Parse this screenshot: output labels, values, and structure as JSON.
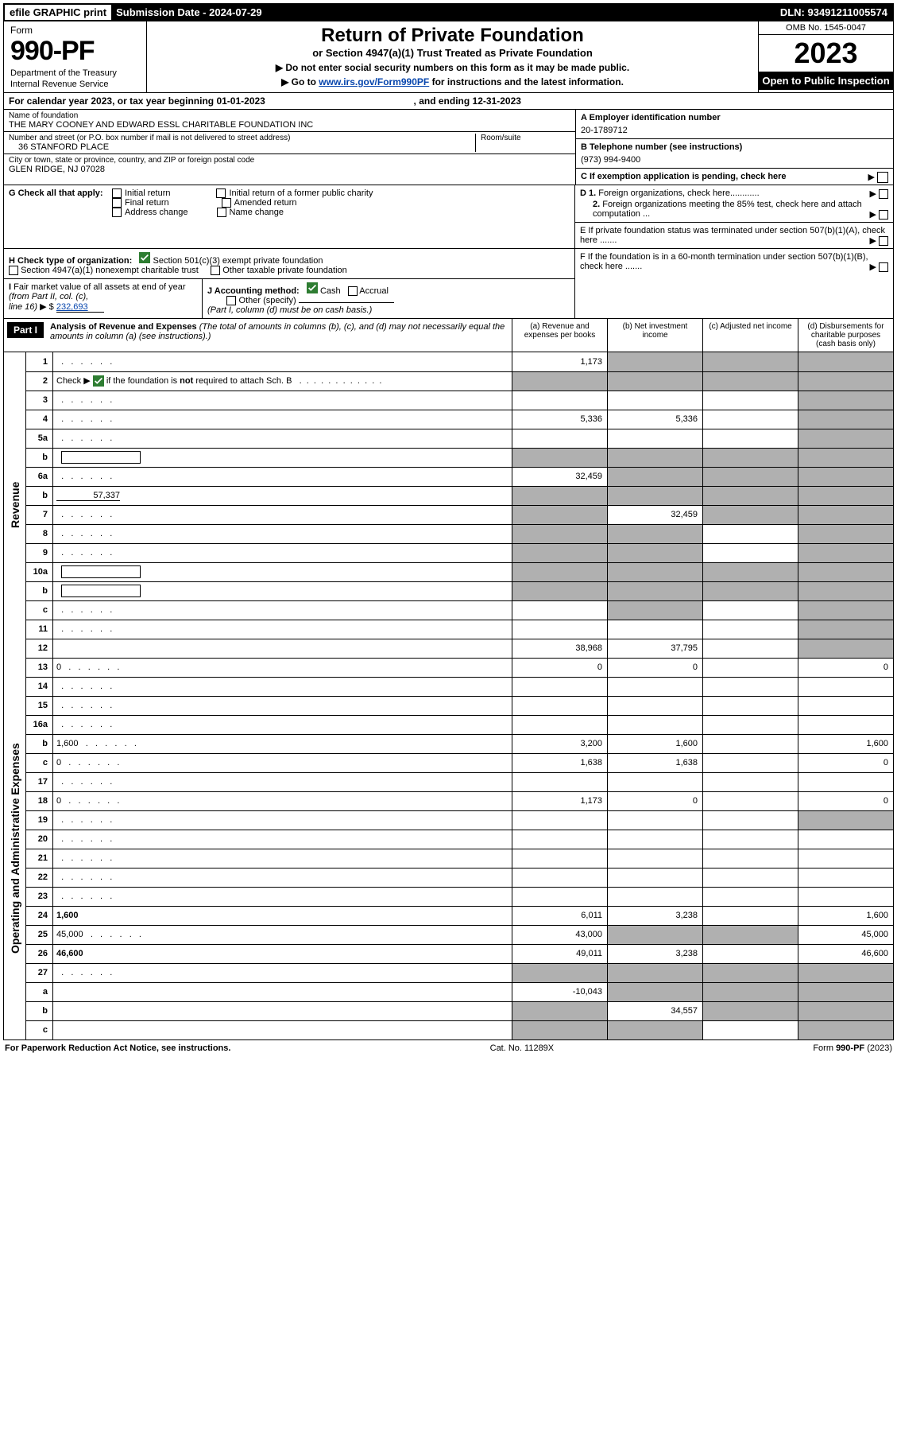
{
  "topbar": {
    "efile": "efile GRAPHIC print",
    "subdate_label": "Submission Date - ",
    "subdate": "2024-07-29",
    "dln_label": "DLN: ",
    "dln": "93491211005574"
  },
  "header": {
    "form_label": "Form",
    "form_no": "990-PF",
    "dept": "Department of the Treasury",
    "irs": "Internal Revenue Service",
    "title": "Return of Private Foundation",
    "subtitle": "or Section 4947(a)(1) Trust Treated as Private Foundation",
    "instr1": "▶ Do not enter social security numbers on this form as it may be made public.",
    "instr2_pre": "▶ Go to ",
    "instr2_link": "www.irs.gov/Form990PF",
    "instr2_post": " for instructions and the latest information.",
    "omb": "OMB No. 1545-0047",
    "year": "2023",
    "open": "Open to Public Inspection"
  },
  "cal": {
    "text_pre": "For calendar year 2023, or tax year beginning ",
    "begin": "01-01-2023",
    "mid": " , and ending ",
    "end": "12-31-2023"
  },
  "entity": {
    "name_lbl": "Name of foundation",
    "name": "THE MARY COONEY AND EDWARD ESSL CHARITABLE FOUNDATION INC",
    "addr_lbl": "Number and street (or P.O. box number if mail is not delivered to street address)",
    "addr": "36 STANFORD PLACE",
    "room_lbl": "Room/suite",
    "room": "",
    "city_lbl": "City or town, state or province, country, and ZIP or foreign postal code",
    "city": "GLEN RIDGE, NJ  07028",
    "a_lbl": "A Employer identification number",
    "a_val": "20-1789712",
    "b_lbl": "B Telephone number (see instructions)",
    "b_val": "(973) 994-9400",
    "c_lbl": "C If exemption application is pending, check here"
  },
  "g": {
    "lbl": "G Check all that apply:",
    "opts": [
      "Initial return",
      "Final return",
      "Address change",
      "Initial return of a former public charity",
      "Amended return",
      "Name change"
    ]
  },
  "d": {
    "d1": "D 1. Foreign organizations, check here............",
    "d2": "2. Foreign organizations meeting the 85% test, check here and attach computation ...",
    "e": "E  If private foundation status was terminated under section 507(b)(1)(A), check here .......",
    "f": "F  If the foundation is in a 60-month termination under section 507(b)(1)(B), check here ......."
  },
  "h": {
    "lbl": "H Check type of organization:",
    "opt1": "Section 501(c)(3) exempt private foundation",
    "opt2": "Section 4947(a)(1) nonexempt charitable trust",
    "opt3": "Other taxable private foundation"
  },
  "i": {
    "lbl": "I Fair market value of all assets at end of year (from Part II, col. (c),",
    "line": "line 16) ▶ $",
    "val": "232,693"
  },
  "j": {
    "lbl": "J Accounting method:",
    "cash": "Cash",
    "accrual": "Accrual",
    "other": "Other (specify)",
    "note": "(Part I, column (d) must be on cash basis.)"
  },
  "part1": {
    "tag": "Part I",
    "title": "Analysis of Revenue and Expenses",
    "note": "(The total of amounts in columns (b), (c), and (d) may not necessarily equal the amounts in column (a) (see instructions).)",
    "cols": {
      "a": "(a) Revenue and expenses per books",
      "b": "(b) Net investment income",
      "c": "(c) Adjusted net income",
      "d": "(d) Disbursements for charitable purposes (cash basis only)"
    }
  },
  "side": {
    "rev": "Revenue",
    "exp": "Operating and Administrative Expenses"
  },
  "rows": [
    {
      "n": "1",
      "d": "",
      "a": "1,173",
      "b": "",
      "c": "",
      "bg": "g",
      "cg": "g",
      "dg": "g"
    },
    {
      "n": "2",
      "d": "",
      "a": "",
      "b": "",
      "c": "",
      "ag": "g",
      "bg": "g",
      "cg": "g",
      "dg": "g",
      "bold_not": true
    },
    {
      "n": "3",
      "d": "",
      "a": "",
      "b": "",
      "c": "",
      "dg": "g"
    },
    {
      "n": "4",
      "d": "",
      "a": "5,336",
      "b": "5,336",
      "c": "",
      "dg": "g"
    },
    {
      "n": "5a",
      "d": "",
      "a": "",
      "b": "",
      "c": "",
      "dg": "g"
    },
    {
      "n": "b",
      "d": "",
      "a": "",
      "b": "",
      "c": "",
      "ag": "g",
      "bg": "g",
      "cg": "g",
      "dg": "g",
      "inset": true
    },
    {
      "n": "6a",
      "d": "",
      "a": "32,459",
      "b": "",
      "c": "",
      "bg": "g",
      "cg": "g",
      "dg": "g"
    },
    {
      "n": "b",
      "d": "",
      "sub": "57,337",
      "a": "",
      "b": "",
      "c": "",
      "ag": "g",
      "bg": "g",
      "cg": "g",
      "dg": "g",
      "inset": true
    },
    {
      "n": "7",
      "d": "",
      "a": "",
      "b": "32,459",
      "c": "",
      "ag": "g",
      "cg": "g",
      "dg": "g"
    },
    {
      "n": "8",
      "d": "",
      "a": "",
      "b": "",
      "c": "",
      "ag": "g",
      "bg": "g",
      "dg": "g"
    },
    {
      "n": "9",
      "d": "",
      "a": "",
      "b": "",
      "c": "",
      "ag": "g",
      "bg": "g",
      "dg": "g"
    },
    {
      "n": "10a",
      "d": "",
      "a": "",
      "b": "",
      "c": "",
      "ag": "g",
      "bg": "g",
      "cg": "g",
      "dg": "g",
      "inset": true
    },
    {
      "n": "b",
      "d": "",
      "a": "",
      "b": "",
      "c": "",
      "ag": "g",
      "bg": "g",
      "cg": "g",
      "dg": "g",
      "inset": true
    },
    {
      "n": "c",
      "d": "",
      "a": "",
      "b": "",
      "c": "",
      "bg": "g",
      "dg": "g"
    },
    {
      "n": "11",
      "d": "",
      "a": "",
      "b": "",
      "c": "",
      "dg": "g"
    },
    {
      "n": "12",
      "d": "",
      "a": "38,968",
      "b": "37,795",
      "c": "",
      "dg": "g",
      "bold": true
    }
  ],
  "exp_rows": [
    {
      "n": "13",
      "d": "0",
      "a": "0",
      "b": "0",
      "c": ""
    },
    {
      "n": "14",
      "d": "",
      "a": "",
      "b": "",
      "c": ""
    },
    {
      "n": "15",
      "d": "",
      "a": "",
      "b": "",
      "c": ""
    },
    {
      "n": "16a",
      "d": "",
      "a": "",
      "b": "",
      "c": ""
    },
    {
      "n": "b",
      "d": "1,600",
      "a": "3,200",
      "b": "1,600",
      "c": ""
    },
    {
      "n": "c",
      "d": "0",
      "a": "1,638",
      "b": "1,638",
      "c": ""
    },
    {
      "n": "17",
      "d": "",
      "a": "",
      "b": "",
      "c": ""
    },
    {
      "n": "18",
      "d": "0",
      "a": "1,173",
      "b": "0",
      "c": ""
    },
    {
      "n": "19",
      "d": "",
      "a": "",
      "b": "",
      "c": "",
      "dg": "g"
    },
    {
      "n": "20",
      "d": "",
      "a": "",
      "b": "",
      "c": ""
    },
    {
      "n": "21",
      "d": "",
      "a": "",
      "b": "",
      "c": ""
    },
    {
      "n": "22",
      "d": "",
      "a": "",
      "b": "",
      "c": ""
    },
    {
      "n": "23",
      "d": "",
      "a": "",
      "b": "",
      "c": ""
    },
    {
      "n": "24",
      "d": "1,600",
      "a": "6,011",
      "b": "3,238",
      "c": "",
      "bold": true
    },
    {
      "n": "25",
      "d": "45,000",
      "a": "43,000",
      "b": "",
      "c": "",
      "bg": "g",
      "cg": "g"
    },
    {
      "n": "26",
      "d": "46,600",
      "a": "49,011",
      "b": "3,238",
      "c": "",
      "bold": true
    },
    {
      "n": "27",
      "d": "",
      "a": "",
      "b": "",
      "c": "",
      "ag": "g",
      "bg": "g",
      "cg": "g",
      "dg": "g"
    },
    {
      "n": "a",
      "d": "",
      "a": "-10,043",
      "b": "",
      "c": "",
      "bg": "g",
      "cg": "g",
      "dg": "g",
      "bold": true
    },
    {
      "n": "b",
      "d": "",
      "a": "",
      "b": "34,557",
      "c": "",
      "ag": "g",
      "cg": "g",
      "dg": "g",
      "bold": true
    },
    {
      "n": "c",
      "d": "",
      "a": "",
      "b": "",
      "c": "",
      "ag": "g",
      "bg": "g",
      "dg": "g",
      "bold": true
    }
  ],
  "footer": {
    "left": "For Paperwork Reduction Act Notice, see instructions.",
    "mid": "Cat. No. 11289X",
    "right": "Form 990-PF (2023)"
  }
}
